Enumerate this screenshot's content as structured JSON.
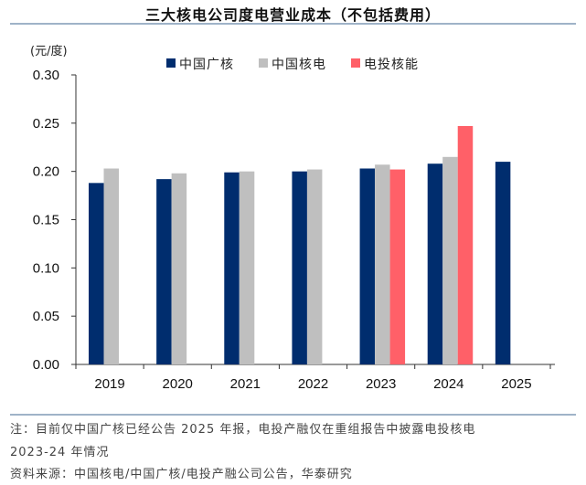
{
  "chart_data": {
    "type": "bar",
    "title": "三大核电公司度电营业成本（不包括费用）",
    "ylabel": "(元/度)",
    "xlabel": "",
    "ylim": [
      0,
      0.3
    ],
    "yticks": [
      "0.00",
      "0.05",
      "0.10",
      "0.15",
      "0.20",
      "0.25",
      "0.30"
    ],
    "categories": [
      "2019",
      "2020",
      "2021",
      "2022",
      "2023",
      "2024",
      "2025"
    ],
    "legend_position": "top-center",
    "grid": false,
    "series": [
      {
        "name": "中国广核",
        "color": "#002d6e",
        "values": [
          0.188,
          0.192,
          0.199,
          0.2,
          0.203,
          0.208,
          0.21
        ]
      },
      {
        "name": "中国核电",
        "color": "#bfbfbf",
        "values": [
          0.203,
          0.198,
          0.2,
          0.202,
          0.207,
          0.215,
          null
        ]
      },
      {
        "name": "电投核能",
        "color": "#ff6068",
        "values": [
          null,
          null,
          null,
          null,
          0.202,
          0.247,
          null
        ]
      }
    ]
  },
  "notes": {
    "line1": "注：目前仅中国广核已经公告 2025 年报，电投产融仅在重组报告中披露电投核电",
    "line2": "2023-24 年情况",
    "source": "资料来源：中国核电/中国广核/电投产融公司公告，华泰研究"
  }
}
